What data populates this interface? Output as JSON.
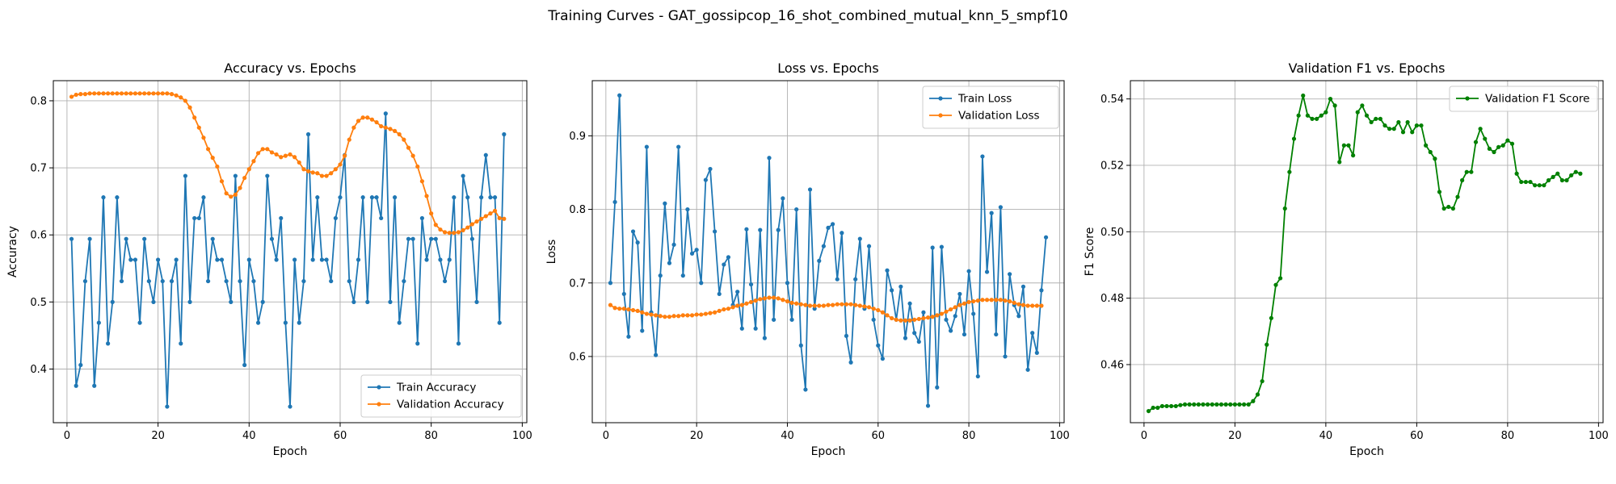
{
  "figure": {
    "suptitle": "Training Curves - GAT_gossipcop_16_shot_combined_mutual_knn_5_smpf10"
  },
  "chart_data": [
    {
      "type": "line",
      "title": "Accuracy vs. Epochs",
      "xlabel": "Epoch",
      "ylabel": "Accuracy",
      "xlim": [
        -3,
        101
      ],
      "ylim": [
        0.32,
        0.83
      ],
      "xticks": [
        0,
        20,
        40,
        60,
        80,
        100
      ],
      "yticks": [
        0.4,
        0.5,
        0.6,
        0.7,
        0.8
      ],
      "ytick_labels": [
        "0.4",
        "0.5",
        "0.6",
        "0.7",
        "0.8"
      ],
      "grid": true,
      "legend_position": "lower right",
      "series": [
        {
          "name": "Train Accuracy",
          "color": "#1f77b4",
          "values": [
            0.594,
            0.375,
            0.406,
            0.531,
            0.594,
            0.375,
            0.469,
            0.656,
            0.438,
            0.5,
            0.656,
            0.531,
            0.594,
            0.563,
            0.563,
            0.469,
            0.594,
            0.531,
            0.5,
            0.563,
            0.531,
            0.344,
            0.531,
            0.563,
            0.438,
            0.688,
            0.5,
            0.625,
            0.625,
            0.656,
            0.531,
            0.594,
            0.563,
            0.563,
            0.531,
            0.5,
            0.688,
            0.531,
            0.406,
            0.563,
            0.531,
            0.469,
            0.5,
            0.688,
            0.594,
            0.563,
            0.625,
            0.469,
            0.344,
            0.563,
            0.469,
            0.531,
            0.75,
            0.563,
            0.656,
            0.563,
            0.563,
            0.531,
            0.625,
            0.656,
            0.719,
            0.531,
            0.5,
            0.563,
            0.656,
            0.5,
            0.656,
            0.656,
            0.625,
            0.781,
            0.5,
            0.656,
            0.469,
            0.531,
            0.594,
            0.594,
            0.438,
            0.625,
            0.563,
            0.594,
            0.594,
            0.563,
            0.531,
            0.563,
            0.656,
            0.438,
            0.688,
            0.656,
            0.594,
            0.5,
            0.656,
            0.719,
            0.656,
            0.656,
            0.469,
            0.75
          ]
        },
        {
          "name": "Validation Accuracy",
          "color": "#ff7f0e",
          "values": [
            0.806,
            0.809,
            0.81,
            0.81,
            0.811,
            0.811,
            0.811,
            0.811,
            0.811,
            0.811,
            0.811,
            0.811,
            0.811,
            0.811,
            0.811,
            0.811,
            0.811,
            0.811,
            0.811,
            0.811,
            0.811,
            0.811,
            0.81,
            0.808,
            0.805,
            0.8,
            0.79,
            0.775,
            0.76,
            0.745,
            0.728,
            0.715,
            0.702,
            0.68,
            0.662,
            0.657,
            0.66,
            0.67,
            0.685,
            0.698,
            0.71,
            0.722,
            0.728,
            0.728,
            0.723,
            0.72,
            0.716,
            0.718,
            0.72,
            0.716,
            0.708,
            0.698,
            0.695,
            0.693,
            0.692,
            0.688,
            0.688,
            0.692,
            0.698,
            0.705,
            0.718,
            0.742,
            0.76,
            0.77,
            0.775,
            0.775,
            0.772,
            0.768,
            0.762,
            0.76,
            0.758,
            0.755,
            0.75,
            0.742,
            0.73,
            0.718,
            0.702,
            0.68,
            0.658,
            0.632,
            0.615,
            0.608,
            0.604,
            0.603,
            0.603,
            0.604,
            0.607,
            0.611,
            0.616,
            0.62,
            0.624,
            0.628,
            0.632,
            0.636,
            0.625,
            0.624
          ]
        }
      ]
    },
    {
      "type": "line",
      "title": "Loss vs. Epochs",
      "xlabel": "Epoch",
      "ylabel": "Loss",
      "xlim": [
        -3,
        101
      ],
      "ylim": [
        0.51,
        0.975
      ],
      "xticks": [
        0,
        20,
        40,
        60,
        80,
        100
      ],
      "yticks": [
        0.6,
        0.7,
        0.8,
        0.9
      ],
      "ytick_labels": [
        "0.6",
        "0.7",
        "0.8",
        "0.9"
      ],
      "grid": true,
      "legend_position": "upper right",
      "series": [
        {
          "name": "Train Loss",
          "color": "#1f77b4",
          "values": [
            0.7,
            0.81,
            0.955,
            0.685,
            0.627,
            0.77,
            0.755,
            0.635,
            0.885,
            0.66,
            0.602,
            0.71,
            0.808,
            0.727,
            0.752,
            0.885,
            0.71,
            0.8,
            0.74,
            0.745,
            0.7,
            0.84,
            0.855,
            0.77,
            0.685,
            0.725,
            0.735,
            0.67,
            0.688,
            0.638,
            0.773,
            0.698,
            0.638,
            0.772,
            0.625,
            0.87,
            0.65,
            0.772,
            0.815,
            0.7,
            0.65,
            0.8,
            0.615,
            0.555,
            0.827,
            0.665,
            0.73,
            0.75,
            0.775,
            0.78,
            0.705,
            0.768,
            0.628,
            0.592,
            0.705,
            0.76,
            0.665,
            0.75,
            0.65,
            0.615,
            0.597,
            0.717,
            0.69,
            0.65,
            0.695,
            0.625,
            0.672,
            0.632,
            0.62,
            0.66,
            0.533,
            0.748,
            0.558,
            0.749,
            0.65,
            0.635,
            0.655,
            0.685,
            0.63,
            0.716,
            0.658,
            0.573,
            0.872,
            0.715,
            0.795,
            0.63,
            0.803,
            0.6,
            0.712,
            0.67,
            0.655,
            0.695,
            0.582,
            0.632,
            0.605,
            0.69,
            0.762
          ]
        },
        {
          "name": "Validation Loss",
          "color": "#ff7f0e",
          "values": [
            0.67,
            0.666,
            0.665,
            0.665,
            0.664,
            0.663,
            0.662,
            0.66,
            0.658,
            0.657,
            0.656,
            0.655,
            0.654,
            0.654,
            0.655,
            0.655,
            0.656,
            0.656,
            0.656,
            0.657,
            0.657,
            0.658,
            0.659,
            0.66,
            0.662,
            0.664,
            0.665,
            0.667,
            0.669,
            0.67,
            0.672,
            0.674,
            0.676,
            0.678,
            0.679,
            0.68,
            0.68,
            0.679,
            0.677,
            0.675,
            0.673,
            0.672,
            0.671,
            0.67,
            0.669,
            0.669,
            0.669,
            0.669,
            0.67,
            0.67,
            0.671,
            0.671,
            0.671,
            0.671,
            0.67,
            0.669,
            0.668,
            0.667,
            0.665,
            0.663,
            0.66,
            0.656,
            0.652,
            0.65,
            0.649,
            0.649,
            0.649,
            0.65,
            0.651,
            0.652,
            0.653,
            0.654,
            0.656,
            0.658,
            0.661,
            0.664,
            0.667,
            0.67,
            0.672,
            0.674,
            0.675,
            0.676,
            0.677,
            0.677,
            0.677,
            0.677,
            0.677,
            0.676,
            0.675,
            0.673,
            0.671,
            0.67,
            0.669,
            0.669,
            0.669,
            0.669
          ]
        }
      ]
    },
    {
      "type": "line",
      "title": "Validation F1 vs. Epochs",
      "xlabel": "Epoch",
      "ylabel": "F1 Score",
      "xlim": [
        -3,
        101
      ],
      "ylim": [
        0.4425,
        0.5455
      ],
      "xticks": [
        0,
        20,
        40,
        60,
        80,
        100
      ],
      "yticks": [
        0.46,
        0.48,
        0.5,
        0.52,
        0.54
      ],
      "ytick_labels": [
        "0.46",
        "0.48",
        "0.50",
        "0.52",
        "0.54"
      ],
      "grid": true,
      "legend_position": "upper right",
      "series": [
        {
          "name": "Validation F1 Score",
          "color": "#008000",
          "values": [
            0.446,
            0.447,
            0.447,
            0.4475,
            0.4475,
            0.4475,
            0.4475,
            0.4478,
            0.448,
            0.448,
            0.448,
            0.448,
            0.448,
            0.448,
            0.448,
            0.448,
            0.448,
            0.448,
            0.448,
            0.448,
            0.448,
            0.448,
            0.448,
            0.449,
            0.451,
            0.455,
            0.466,
            0.474,
            0.484,
            0.486,
            0.507,
            0.518,
            0.528,
            0.535,
            0.541,
            0.535,
            0.534,
            0.534,
            0.535,
            0.536,
            0.54,
            0.538,
            0.521,
            0.526,
            0.526,
            0.523,
            0.536,
            0.538,
            0.535,
            0.533,
            0.534,
            0.534,
            0.532,
            0.531,
            0.531,
            0.533,
            0.53,
            0.533,
            0.53,
            0.532,
            0.532,
            0.526,
            0.524,
            0.522,
            0.512,
            0.507,
            0.5075,
            0.507,
            0.5105,
            0.5155,
            0.518,
            0.518,
            0.527,
            0.531,
            0.528,
            0.525,
            0.524,
            0.5255,
            0.526,
            0.5275,
            0.5265,
            0.5175,
            0.515,
            0.515,
            0.515,
            0.514,
            0.514,
            0.514,
            0.5155,
            0.5165,
            0.5175,
            0.5155,
            0.5155,
            0.517,
            0.518,
            0.5175
          ]
        }
      ]
    }
  ]
}
